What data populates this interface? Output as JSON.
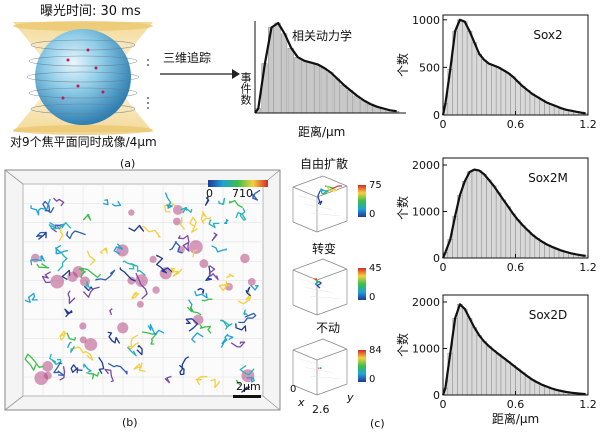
{
  "panel_a": {
    "exposure": "曝光时间: 30 ms",
    "imaging_note": "对9个焦平面同时成像/4µm",
    "tracking_label": "三维追踪",
    "dynamics_label": "相关动力学",
    "event_axis_label": "事件数",
    "distance_axis_label": "距离/µm",
    "caption": "(a)"
  },
  "panel_b": {
    "colorbar_min": "0",
    "colorbar_max": "710",
    "scale_bar": "2µm",
    "caption": "(b)"
  },
  "panel_c": {
    "free_diffusion": "自由扩散",
    "transition": "转变",
    "immobile": "不动",
    "cb1_max": "75",
    "cb1_min": "0",
    "cb2_max": "45",
    "cb2_min": "0",
    "cb3_max": "84",
    "cb3_min": "0",
    "axis_x": "x",
    "axis_y": "y",
    "axis_val": "2.6",
    "caption": "(c)"
  },
  "chart_data": [
    {
      "type": "bar",
      "title": "Sox2",
      "xlabel": "",
      "ylabel": "个数",
      "xlim": [
        0,
        1.2
      ],
      "ylim": [
        0,
        1050
      ],
      "yticks": [
        "0",
        "500",
        "1000"
      ],
      "xticks": [
        "0",
        "0.6",
        "1.2"
      ],
      "bin_width": 0.04,
      "values": [
        120,
        480,
        880,
        1000,
        980,
        880,
        760,
        640,
        580,
        540,
        520,
        500,
        470,
        440,
        400,
        350,
        300,
        260,
        220,
        190,
        160,
        130,
        110,
        90,
        70,
        55,
        45,
        35,
        25,
        18
      ]
    },
    {
      "type": "bar",
      "title": "Sox2M",
      "xlabel": "",
      "ylabel": "个数",
      "xlim": [
        0,
        1.2
      ],
      "ylim": [
        0,
        2150
      ],
      "yticks": [
        "0",
        "1000",
        "2000"
      ],
      "xticks": [
        "0",
        "0.6",
        "1.2"
      ],
      "bin_width": 0.04,
      "values": [
        120,
        400,
        900,
        1350,
        1650,
        1850,
        1900,
        1880,
        1800,
        1680,
        1550,
        1400,
        1250,
        1100,
        950,
        820,
        700,
        600,
        500,
        420,
        350,
        290,
        240,
        200,
        160,
        130,
        100,
        80,
        60,
        45
      ]
    },
    {
      "type": "bar",
      "title": "Sox2D",
      "xlabel": "距离/µm",
      "ylabel": "个数",
      "xlim": [
        0,
        1.2
      ],
      "ylim": [
        0,
        2150
      ],
      "yticks": [
        "0",
        "1000",
        "2000"
      ],
      "xticks": [
        "0",
        "0.6",
        "1.2"
      ],
      "bin_width": 0.04,
      "values": [
        150,
        900,
        1650,
        1950,
        1850,
        1650,
        1450,
        1280,
        1150,
        1050,
        960,
        880,
        800,
        720,
        640,
        560,
        480,
        400,
        330,
        270,
        220,
        180,
        140,
        110,
        85,
        65,
        50,
        38,
        28,
        20
      ]
    },
    {
      "type": "area",
      "title": "相关动力学",
      "xlabel": "距离/µm",
      "ylabel": "事件数",
      "values": [
        5,
        55,
        95,
        100,
        88,
        72,
        62,
        58,
        56,
        54,
        50,
        45,
        38,
        31,
        25,
        19,
        14,
        10,
        7,
        5,
        3,
        2
      ]
    }
  ]
}
